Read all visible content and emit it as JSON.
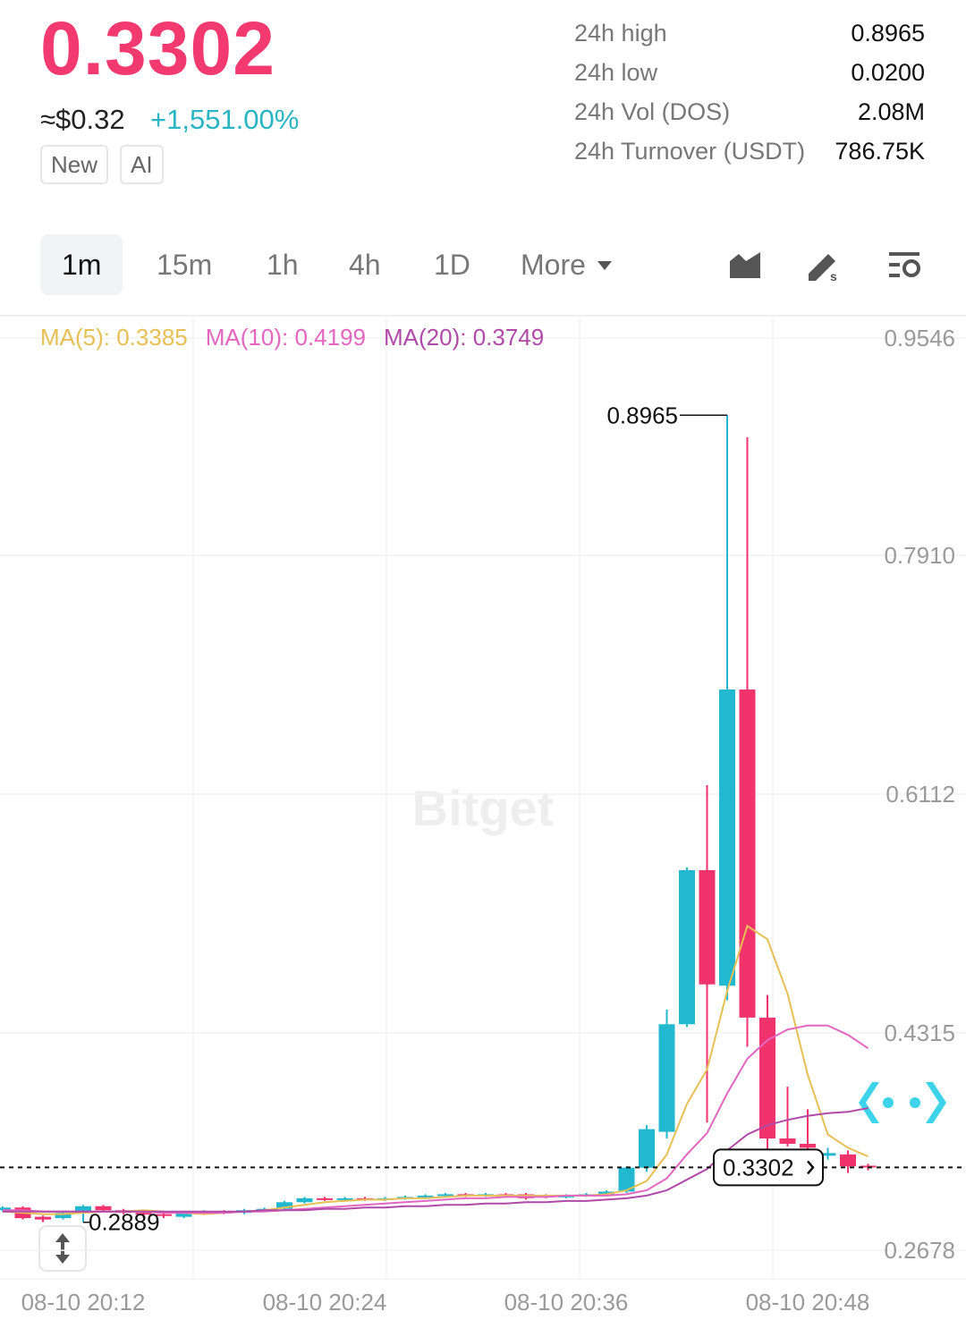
{
  "header": {
    "price": "0.3302",
    "usd_price": "≈$0.32",
    "change": "+1,551.00%",
    "tags": [
      "New",
      "AI"
    ],
    "stats": [
      [
        "24h high",
        "0.8965"
      ],
      [
        "24h low",
        "0.0200"
      ],
      [
        "24h Vol (DOS)",
        "2.08M"
      ],
      [
        "24h Turnover (USDT)",
        "786.75K"
      ]
    ]
  },
  "tabs": [
    "1m",
    "15m",
    "1h",
    "4h",
    "1D",
    "More"
  ],
  "chart_data": {
    "type": "candlestick",
    "watermark": "Bitget",
    "categories": [
      null,
      null,
      null,
      null,
      "08-10 20:12",
      null,
      null,
      null,
      null,
      null,
      null,
      null,
      null,
      null,
      null,
      null,
      "08-10 20:24",
      null,
      null,
      null,
      null,
      null,
      null,
      null,
      null,
      null,
      null,
      null,
      "08-10 20:36",
      null,
      null,
      null,
      null,
      null,
      null,
      null,
      null,
      null,
      null,
      null,
      "08-10 20:48",
      null,
      null,
      null
    ],
    "open": [
      0.298,
      0.3,
      0.293,
      0.292,
      0.296,
      0.301,
      0.298,
      0.296,
      0.295,
      0.293,
      0.296,
      0.297,
      0.296,
      0.298,
      0.299,
      0.304,
      0.307,
      0.306,
      0.307,
      0.306,
      0.307,
      0.308,
      0.309,
      0.31,
      0.309,
      0.31,
      0.31,
      0.309,
      0.308,
      0.309,
      0.31,
      0.312,
      0.33,
      0.357,
      0.438,
      0.554,
      0.467,
      0.69,
      0.443,
      0.352,
      0.348,
      0.339,
      0.34,
      0.3315
    ],
    "close": [
      0.3,
      0.292,
      0.291,
      0.296,
      0.301,
      0.298,
      0.296,
      0.295,
      0.294,
      0.296,
      0.297,
      0.296,
      0.298,
      0.299,
      0.304,
      0.307,
      0.306,
      0.307,
      0.306,
      0.307,
      0.308,
      0.309,
      0.31,
      0.309,
      0.31,
      0.309,
      0.307,
      0.308,
      0.309,
      0.31,
      0.312,
      0.33,
      0.359,
      0.438,
      0.554,
      0.468,
      0.69,
      0.443,
      0.352,
      0.348,
      0.345,
      0.341,
      0.331,
      0.3302
    ],
    "high": [
      0.301,
      0.301,
      0.294,
      0.297,
      0.302,
      0.302,
      0.299,
      0.297,
      0.296,
      0.297,
      0.298,
      0.298,
      0.299,
      0.3,
      0.305,
      0.308,
      0.308,
      0.308,
      0.308,
      0.308,
      0.309,
      0.31,
      0.311,
      0.311,
      0.311,
      0.311,
      0.311,
      0.31,
      0.31,
      0.311,
      0.313,
      0.331,
      0.362,
      0.449,
      0.556,
      0.618,
      0.8965,
      0.88,
      0.46,
      0.391,
      0.374,
      0.345,
      0.343,
      0.333
    ],
    "low": [
      0.297,
      0.291,
      0.289,
      0.291,
      0.2889,
      0.297,
      0.295,
      0.292,
      0.292,
      0.292,
      0.295,
      0.295,
      0.295,
      0.297,
      0.298,
      0.303,
      0.305,
      0.305,
      0.305,
      0.305,
      0.306,
      0.307,
      0.308,
      0.308,
      0.308,
      0.308,
      0.306,
      0.307,
      0.307,
      0.308,
      0.309,
      0.311,
      0.327,
      0.352,
      0.436,
      0.364,
      0.456,
      0.421,
      0.344,
      0.346,
      0.341,
      0.336,
      0.326,
      0.328
    ],
    "up_color": "#22b8cf",
    "down_color": "#f0336d",
    "series": [
      {
        "name": "MA(5)",
        "color": "#e6bf55",
        "values": [
          0.297,
          0.296,
          0.295,
          0.295,
          0.296,
          0.297,
          0.297,
          0.298,
          0.297,
          0.296,
          0.295,
          0.296,
          0.297,
          0.298,
          0.3,
          0.302,
          0.304,
          0.305,
          0.306,
          0.306,
          0.307,
          0.307,
          0.308,
          0.309,
          0.309,
          0.309,
          0.309,
          0.309,
          0.309,
          0.309,
          0.31,
          0.313,
          0.32,
          0.34,
          0.378,
          0.404,
          0.463,
          0.512,
          0.502,
          0.461,
          0.4,
          0.355,
          0.345,
          0.3385
        ]
      },
      {
        "name": "MA(10)",
        "color": "#e367c0",
        "values": [
          0.298,
          0.298,
          0.297,
          0.297,
          0.297,
          0.297,
          0.297,
          0.297,
          0.296,
          0.296,
          0.296,
          0.296,
          0.297,
          0.297,
          0.298,
          0.299,
          0.3,
          0.301,
          0.302,
          0.303,
          0.304,
          0.305,
          0.306,
          0.307,
          0.307,
          0.308,
          0.308,
          0.308,
          0.309,
          0.309,
          0.309,
          0.31,
          0.313,
          0.322,
          0.34,
          0.356,
          0.386,
          0.412,
          0.426,
          0.434,
          0.437,
          0.437,
          0.43,
          0.4199
        ]
      },
      {
        "name": "MA(20)",
        "color": "#b04aa8",
        "values": [
          0.297,
          0.297,
          0.297,
          0.297,
          0.297,
          0.297,
          0.297,
          0.297,
          0.297,
          0.297,
          0.297,
          0.297,
          0.297,
          0.298,
          0.298,
          0.298,
          0.299,
          0.299,
          0.3,
          0.3,
          0.301,
          0.301,
          0.302,
          0.302,
          0.303,
          0.303,
          0.304,
          0.304,
          0.305,
          0.305,
          0.306,
          0.307,
          0.309,
          0.313,
          0.321,
          0.329,
          0.343,
          0.355,
          0.362,
          0.366,
          0.369,
          0.371,
          0.372,
          0.3749
        ]
      }
    ],
    "ylim": [
      0.2463,
      0.9701
    ],
    "yticks": [
      0.9546,
      {
        "value": 0.791,
        "label": "0.7910"
      },
      0.6112,
      0.4315,
      0.2678
    ],
    "grid": true
  }
}
